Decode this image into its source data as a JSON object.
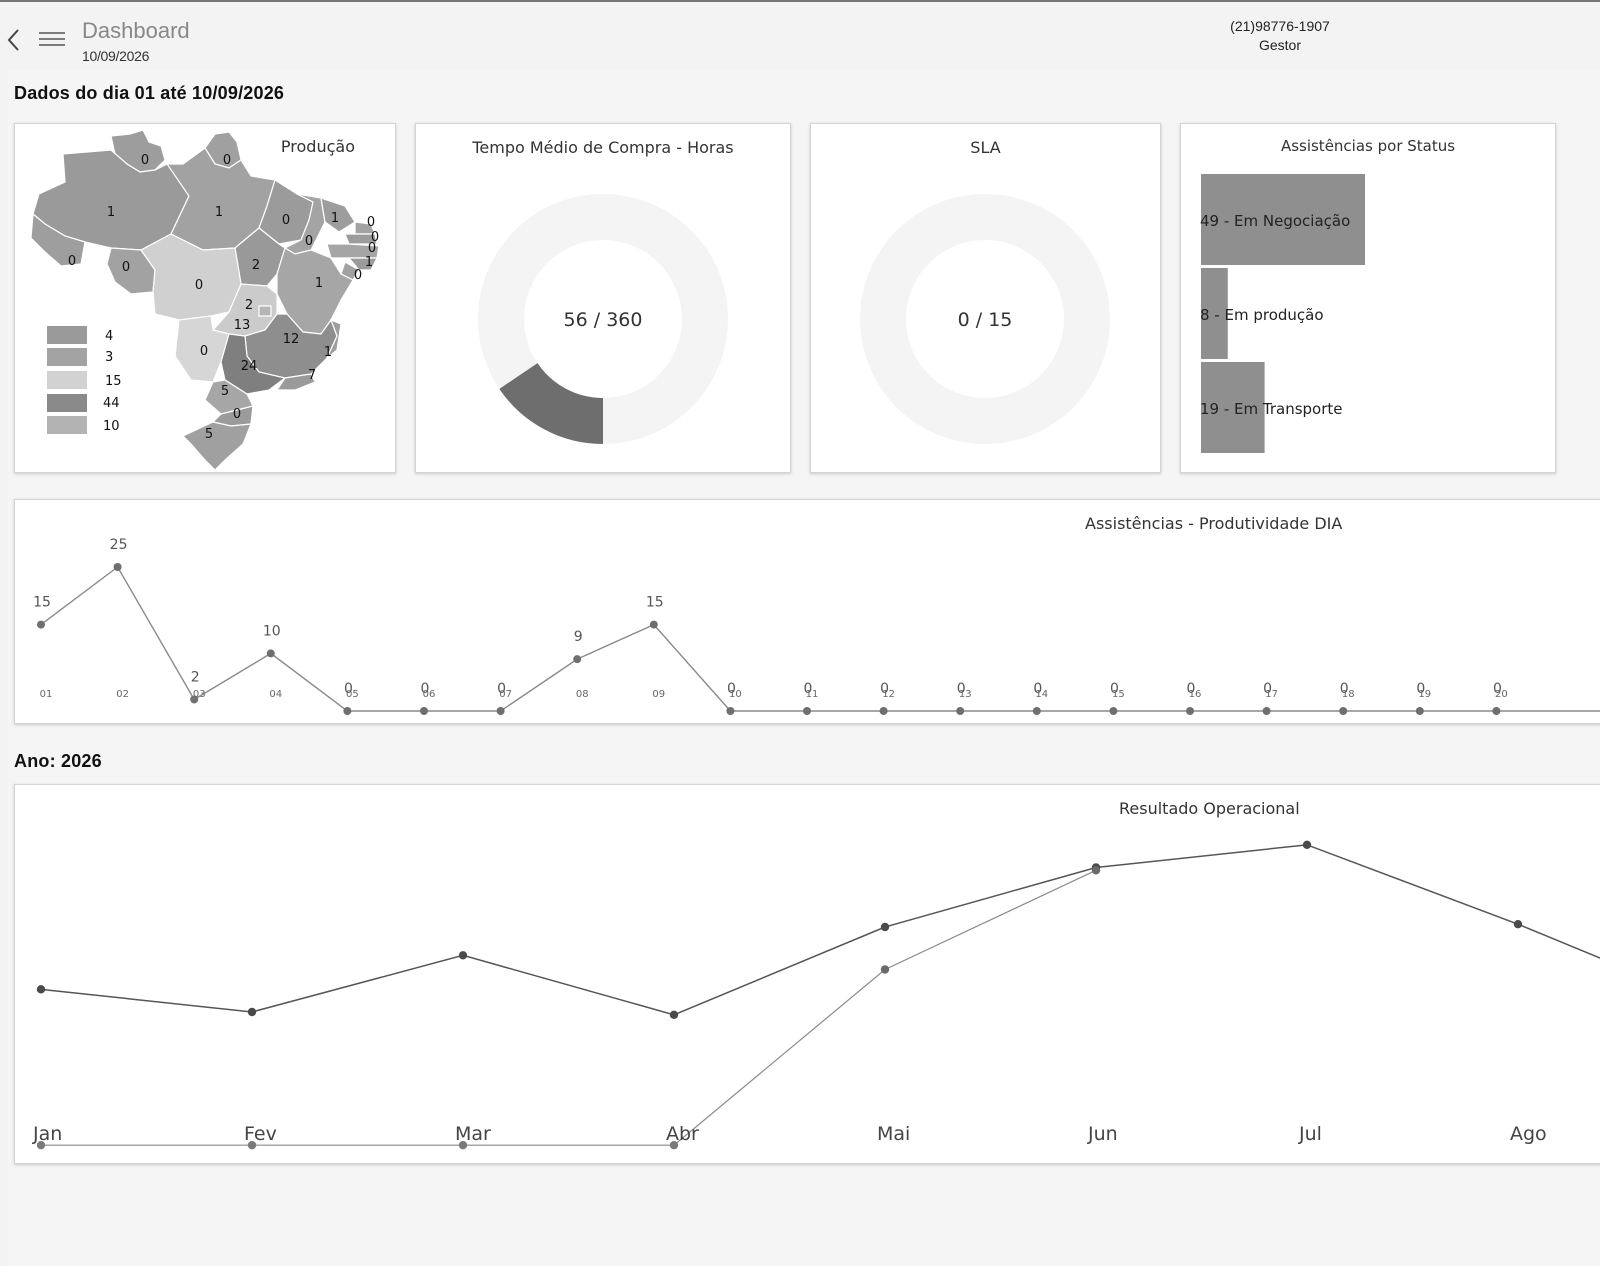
{
  "header": {
    "title": "Dashboard",
    "date": "10/09/2026",
    "phone": "(21)98776-1907",
    "role": "Gestor"
  },
  "sections": {
    "period_title": "Dados do dia 01 até 10/09/2026",
    "year_title": "Ano: 2026"
  },
  "map_card": {
    "title": "Produção",
    "legend": [
      {
        "value": "4",
        "color": "#9a9a9a"
      },
      {
        "value": "3",
        "color": "#a3a3a3"
      },
      {
        "value": "15",
        "color": "#d2d2d2"
      },
      {
        "value": "44",
        "color": "#8a8a8a"
      },
      {
        "value": "10",
        "color": "#b3b3b3"
      }
    ],
    "states": [
      {
        "code": "RR",
        "value": "0"
      },
      {
        "code": "AP",
        "value": "0"
      },
      {
        "code": "AM",
        "value": "1"
      },
      {
        "code": "PA",
        "value": "1"
      },
      {
        "code": "MA",
        "value": "0"
      },
      {
        "code": "CE",
        "value": "1"
      },
      {
        "code": "RN",
        "value": "0"
      },
      {
        "code": "PB",
        "value": "0"
      },
      {
        "code": "PE",
        "value": "0"
      },
      {
        "code": "AL",
        "value": "1"
      },
      {
        "code": "SE",
        "value": "0"
      },
      {
        "code": "PI",
        "value": "0"
      },
      {
        "code": "AC",
        "value": "0"
      },
      {
        "code": "RO",
        "value": "0"
      },
      {
        "code": "TO",
        "value": "2"
      },
      {
        "code": "MT",
        "value": "0"
      },
      {
        "code": "BA",
        "value": "1"
      },
      {
        "code": "GO",
        "value": "2"
      },
      {
        "code": "DF",
        "value": "13"
      },
      {
        "code": "MG",
        "value": "12"
      },
      {
        "code": "MS",
        "value": "0"
      },
      {
        "code": "ES",
        "value": "1"
      },
      {
        "code": "SP",
        "value": "24"
      },
      {
        "code": "RJ",
        "value": "7"
      },
      {
        "code": "PR",
        "value": "5"
      },
      {
        "code": "SC",
        "value": "0"
      },
      {
        "code": "RS",
        "value": "5"
      }
    ]
  },
  "purchase_time_card": {
    "title": "Tempo Médio de Compra - Horas",
    "value": 56,
    "total": 360,
    "label": "56 / 360"
  },
  "sla_card": {
    "title": "SLA",
    "value": 0,
    "total": 15,
    "label": "0 / 15"
  },
  "status_card": {
    "title": "Assistências por Status",
    "bars": [
      {
        "label": "49 - Em Negociação",
        "value": 49
      },
      {
        "label": "8 - Em produção",
        "value": 8
      },
      {
        "label": "19 - Em Transporte",
        "value": 19
      }
    ]
  },
  "colors": {
    "donut_track": "#f4f4f4",
    "donut_fill": "#6e6e6e",
    "bar_fill": "#8f8f8f",
    "line_dark": "#555555",
    "line_light": "#8a8a8a"
  },
  "chart_data": [
    {
      "type": "line",
      "title": "Assistências - Produtividade DIA",
      "x": [
        "01",
        "02",
        "03",
        "04",
        "05",
        "06",
        "07",
        "08",
        "09",
        "10",
        "11",
        "12",
        "13",
        "14",
        "15",
        "16",
        "17",
        "18",
        "19",
        "20"
      ],
      "series": [
        {
          "values": [
            15,
            25,
            2,
            10,
            0,
            0,
            0,
            9,
            15,
            0,
            0,
            0,
            0,
            0,
            0,
            0,
            0,
            0,
            0,
            0
          ]
        }
      ],
      "ylim": [
        0,
        25
      ],
      "grid": false
    },
    {
      "type": "line",
      "title": "Resultado Operacional",
      "x": [
        "Jan",
        "Fev",
        "Mar",
        "Abr",
        "Mai",
        "Jun",
        "Jul",
        "Ago"
      ],
      "series": [
        {
          "values": [
            52,
            44,
            64,
            43,
            74,
            95,
            103,
            75
          ]
        },
        {
          "values": [
            null,
            null,
            null,
            null,
            59,
            94,
            null,
            null
          ]
        },
        {
          "values": [
            -3,
            -3,
            -3,
            -3,
            null,
            null,
            null,
            null
          ]
        }
      ],
      "ylim": [
        -10,
        110
      ],
      "grid": false
    }
  ]
}
